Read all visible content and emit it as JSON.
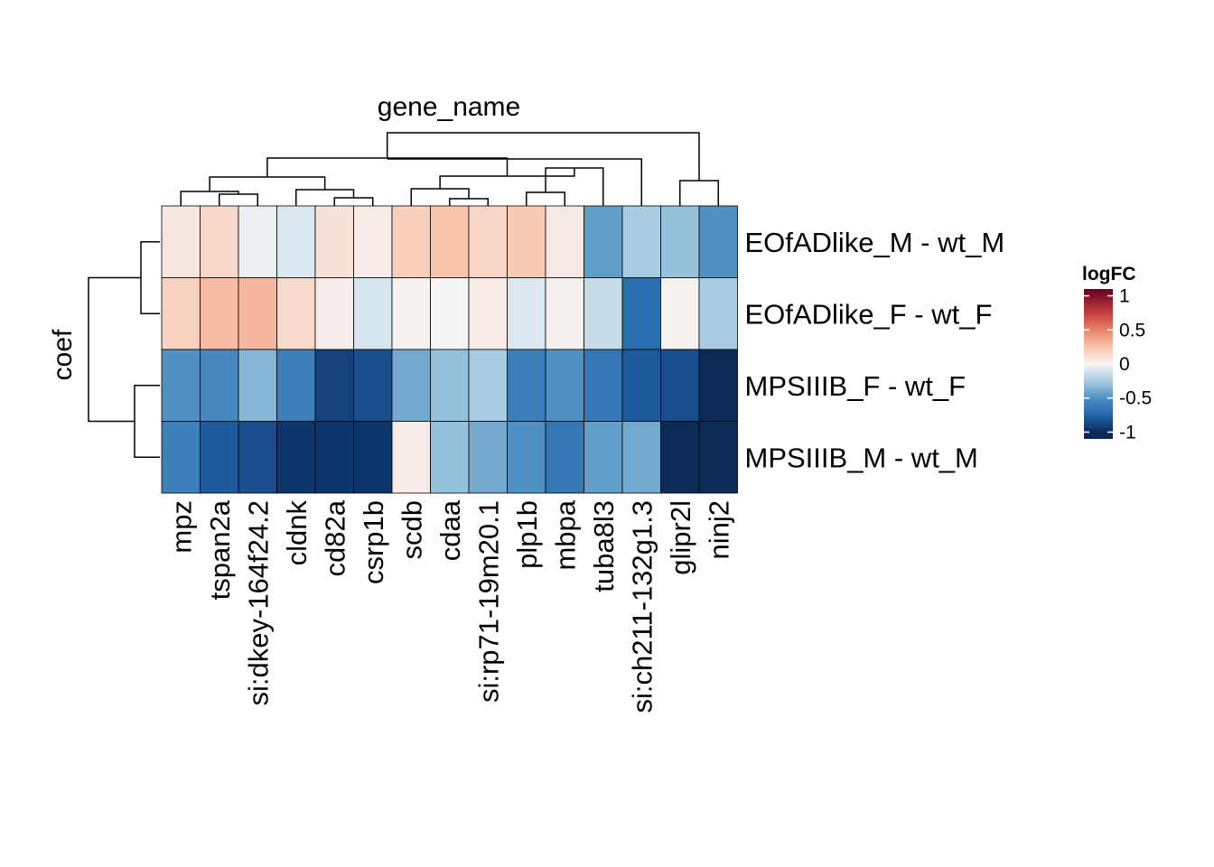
{
  "chart_data": {
    "type": "heatmap",
    "column_title": "gene_name",
    "row_title": "coef",
    "columns": [
      "mpz",
      "tspan2a",
      "si:dkey-164f24.2",
      "cldnk",
      "cd82a",
      "csrp1b",
      "scdb",
      "cdaa",
      "si:rp71-19m20.1",
      "plp1b",
      "mbpa",
      "tuba8l3",
      "si:ch211-132g1.3",
      "glipr2l",
      "ninj2"
    ],
    "rows": [
      "EOfADlike_M - wt_M",
      "EOfADlike_F - wt_F",
      "MPSIIIB_F - wt_F",
      "MPSIIIB_M - wt_M"
    ],
    "values": [
      [
        0.08,
        0.15,
        -0.04,
        -0.08,
        0.1,
        0.05,
        0.2,
        0.25,
        0.17,
        0.22,
        0.06,
        -0.45,
        -0.25,
        -0.3,
        -0.5
      ],
      [
        0.18,
        0.28,
        0.3,
        0.14,
        0.04,
        -0.1,
        0.02,
        0.0,
        0.05,
        -0.08,
        0.03,
        -0.15,
        -0.7,
        0.02,
        -0.25
      ],
      [
        -0.5,
        -0.55,
        -0.35,
        -0.6,
        -0.9,
        -0.85,
        -0.4,
        -0.3,
        -0.25,
        -0.6,
        -0.5,
        -0.65,
        -0.8,
        -0.85,
        -1.15
      ],
      [
        -0.6,
        -0.8,
        -0.85,
        -0.95,
        -0.95,
        -0.95,
        0.05,
        -0.3,
        -0.4,
        -0.5,
        -0.65,
        -0.45,
        -0.4,
        -1.2,
        -1.2
      ]
    ],
    "legend": {
      "title": "logFC",
      "ticks": [
        1,
        0.5,
        0,
        -0.5,
        -1
      ],
      "tick_labels": [
        "1",
        "0.5",
        "0",
        "-0.5",
        "-1"
      ],
      "range": [
        -1.1,
        1.1
      ]
    },
    "color_scale": {
      "stops": [
        [
          -1.1,
          "#0c2a56"
        ],
        [
          -1.0,
          "#0b2a5c"
        ],
        [
          -0.75,
          "#2166ac"
        ],
        [
          -0.5,
          "#4f91c2"
        ],
        [
          -0.25,
          "#a8cde3"
        ],
        [
          0.0,
          "#f5f5f5"
        ],
        [
          0.25,
          "#f8c5ab"
        ],
        [
          0.5,
          "#e7856a"
        ],
        [
          0.75,
          "#c43c3c"
        ],
        [
          1.1,
          "#67001f"
        ]
      ]
    }
  }
}
